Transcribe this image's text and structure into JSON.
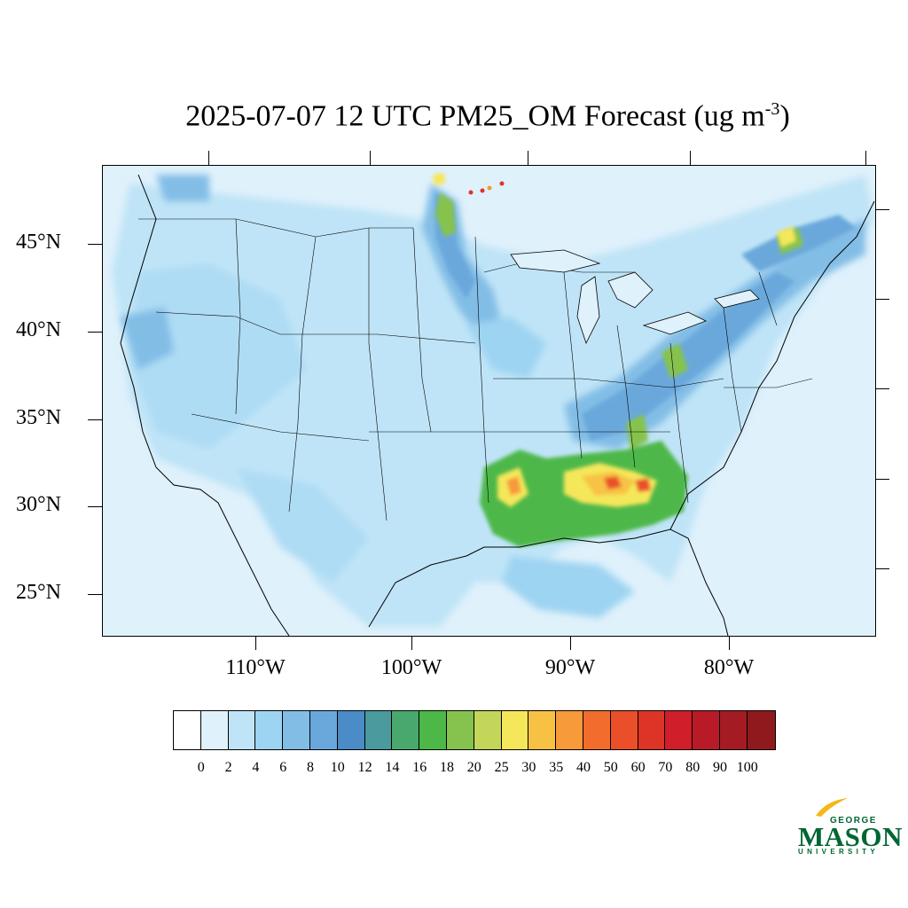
{
  "title": {
    "text": "2025-07-07 12 UTC PM25_OM Forecast (ug m",
    "unit_superscript": "-3",
    "close": ")"
  },
  "map": {
    "projection": "Lambert Conformal (CONUS)",
    "lat_labels": [
      "45°N",
      "40°N",
      "35°N",
      "30°N",
      "25°N"
    ],
    "lon_labels": [
      "110°W",
      "100°W",
      "90°W",
      "80°W"
    ],
    "background_color": "#dff1fb"
  },
  "colorbar": {
    "labels": [
      "0",
      "2",
      "4",
      "6",
      "8",
      "10",
      "12",
      "14",
      "16",
      "18",
      "20",
      "25",
      "30",
      "35",
      "40",
      "50",
      "60",
      "70",
      "80",
      "90",
      "100"
    ],
    "colors": [
      "#ffffff",
      "#dff1fb",
      "#bfe4f7",
      "#9dd4f2",
      "#82bde6",
      "#6aa8dc",
      "#4a8bc8",
      "#4a9a9e",
      "#48a86e",
      "#4db848",
      "#86c34e",
      "#c3d65a",
      "#f5e75a",
      "#f7c244",
      "#f69a3a",
      "#f26c2d",
      "#ea4f2a",
      "#de3428",
      "#d01e2a",
      "#b81b27",
      "#a51b24",
      "#8e1a1e"
    ]
  },
  "logo": {
    "george": "GEORGE",
    "mason": "MASON",
    "university": "UNIVERSITY",
    "color": "#006633",
    "accent": "#f2b81c"
  }
}
